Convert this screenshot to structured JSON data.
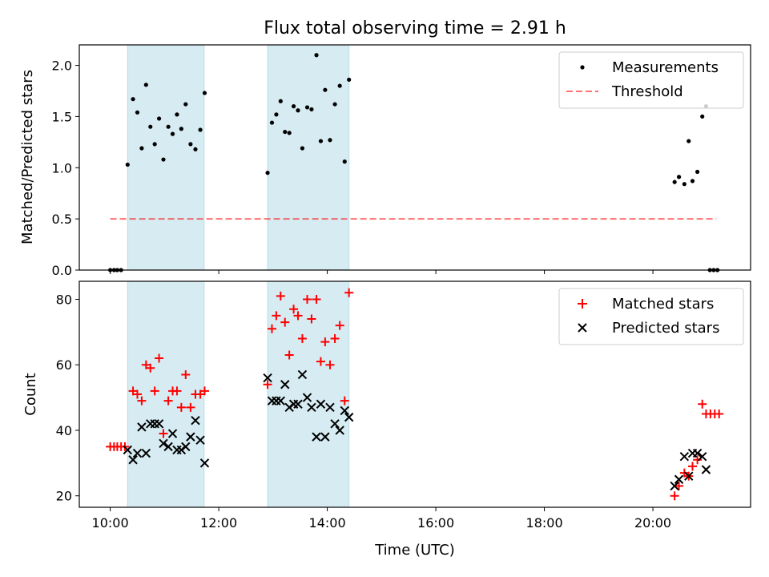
{
  "title": "Flux total observing time = 2.91 h",
  "colors": {
    "shade": "#add8e6",
    "threshold": "#ff0000",
    "matched": "#ff0000",
    "predicted": "#000000",
    "measurements": "#000000"
  },
  "chart_data": [
    {
      "type": "scatter",
      "ylabel": "Matched/Predicted stars",
      "xlim": [
        9.43,
        21.8
      ],
      "ylim": [
        0,
        2.2
      ],
      "xticks": [
        10,
        12,
        14,
        16,
        18,
        20
      ],
      "yticks": [
        0.0,
        0.5,
        1.0,
        1.5,
        2.0
      ],
      "ytick_labels": [
        "0.0",
        "0.5",
        "1.0",
        "1.5",
        "2.0"
      ],
      "shaded_intervals": [
        [
          10.32,
          11.73
        ],
        [
          12.9,
          14.4
        ]
      ],
      "legend": {
        "placement": "upper right",
        "entries": [
          "Measurements",
          "Threshold"
        ]
      },
      "threshold": {
        "name": "Threshold",
        "y": 0.5,
        "x_range": [
          10.0,
          21.17
        ],
        "style": "dashed"
      },
      "series": [
        {
          "name": "Measurements",
          "marker": "dot",
          "points": [
            [
              10.0,
              0.0
            ],
            [
              10.07,
              0.0
            ],
            [
              10.13,
              0.0
            ],
            [
              10.2,
              0.0
            ],
            [
              10.32,
              1.03
            ],
            [
              10.42,
              1.67
            ],
            [
              10.5,
              1.54
            ],
            [
              10.58,
              1.19
            ],
            [
              10.66,
              1.81
            ],
            [
              10.74,
              1.4
            ],
            [
              10.82,
              1.23
            ],
            [
              10.9,
              1.48
            ],
            [
              10.98,
              1.08
            ],
            [
              11.07,
              1.4
            ],
            [
              11.15,
              1.33
            ],
            [
              11.23,
              1.52
            ],
            [
              11.31,
              1.38
            ],
            [
              11.39,
              1.62
            ],
            [
              11.48,
              1.23
            ],
            [
              11.57,
              1.18
            ],
            [
              11.66,
              1.37
            ],
            [
              11.74,
              1.73
            ],
            [
              12.9,
              0.95
            ],
            [
              12.98,
              1.44
            ],
            [
              13.06,
              1.52
            ],
            [
              13.14,
              1.65
            ],
            [
              13.22,
              1.35
            ],
            [
              13.3,
              1.34
            ],
            [
              13.38,
              1.6
            ],
            [
              13.46,
              1.56
            ],
            [
              13.54,
              1.19
            ],
            [
              13.63,
              1.59
            ],
            [
              13.71,
              1.57
            ],
            [
              13.8,
              2.1
            ],
            [
              13.88,
              1.26
            ],
            [
              13.96,
              1.76
            ],
            [
              14.05,
              1.27
            ],
            [
              14.14,
              1.62
            ],
            [
              14.23,
              1.8
            ],
            [
              14.32,
              1.06
            ],
            [
              14.4,
              1.86
            ],
            [
              20.4,
              0.86
            ],
            [
              20.48,
              0.91
            ],
            [
              20.58,
              0.84
            ],
            [
              20.66,
              1.26
            ],
            [
              20.73,
              0.87
            ],
            [
              20.82,
              0.96
            ],
            [
              20.91,
              1.5
            ],
            [
              20.98,
              1.6
            ],
            [
              21.05,
              0.0
            ],
            [
              21.12,
              0.0
            ],
            [
              21.19,
              0.0
            ]
          ]
        }
      ]
    },
    {
      "type": "scatter",
      "xlabel": "Time (UTC)",
      "ylabel": "Count",
      "xlim": [
        9.43,
        21.8
      ],
      "ylim": [
        16.5,
        85.5
      ],
      "xticks": [
        10,
        12,
        14,
        16,
        18,
        20
      ],
      "xtick_labels": [
        "10:00",
        "12:00",
        "14:00",
        "16:00",
        "18:00",
        "20:00"
      ],
      "yticks": [
        20,
        40,
        60,
        80
      ],
      "ytick_labels": [
        "20",
        "40",
        "60",
        "80"
      ],
      "shaded_intervals": [
        [
          10.32,
          11.73
        ],
        [
          12.9,
          14.4
        ]
      ],
      "legend": {
        "placement": "upper right",
        "entries": [
          "Matched stars",
          "Predicted stars"
        ]
      },
      "series": [
        {
          "name": "Matched stars",
          "marker": "plus",
          "points": [
            [
              10.0,
              35
            ],
            [
              10.07,
              35
            ],
            [
              10.13,
              35
            ],
            [
              10.2,
              35
            ],
            [
              10.27,
              35
            ],
            [
              10.42,
              52
            ],
            [
              10.5,
              51
            ],
            [
              10.58,
              49
            ],
            [
              10.66,
              60
            ],
            [
              10.74,
              59
            ],
            [
              10.82,
              52
            ],
            [
              10.9,
              62
            ],
            [
              10.98,
              39
            ],
            [
              11.07,
              49
            ],
            [
              11.15,
              52
            ],
            [
              11.23,
              52
            ],
            [
              11.31,
              47
            ],
            [
              11.39,
              57
            ],
            [
              11.48,
              47
            ],
            [
              11.57,
              51
            ],
            [
              11.66,
              51
            ],
            [
              11.74,
              52
            ],
            [
              12.9,
              54
            ],
            [
              12.98,
              71
            ],
            [
              13.06,
              75
            ],
            [
              13.14,
              81
            ],
            [
              13.22,
              73
            ],
            [
              13.3,
              63
            ],
            [
              13.38,
              77
            ],
            [
              13.46,
              75
            ],
            [
              13.54,
              68
            ],
            [
              13.63,
              80
            ],
            [
              13.71,
              74
            ],
            [
              13.8,
              80
            ],
            [
              13.88,
              61
            ],
            [
              13.96,
              67
            ],
            [
              14.05,
              60
            ],
            [
              14.14,
              68
            ],
            [
              14.23,
              72
            ],
            [
              14.32,
              49
            ],
            [
              14.4,
              82
            ],
            [
              20.4,
              20
            ],
            [
              20.48,
              23
            ],
            [
              20.58,
              27
            ],
            [
              20.66,
              26
            ],
            [
              20.73,
              29
            ],
            [
              20.82,
              31
            ],
            [
              20.91,
              48
            ],
            [
              20.98,
              45
            ],
            [
              21.06,
              45
            ],
            [
              21.14,
              45
            ],
            [
              21.22,
              45
            ]
          ]
        },
        {
          "name": "Predicted stars",
          "marker": "x",
          "points": [
            [
              10.32,
              34
            ],
            [
              10.42,
              31
            ],
            [
              10.5,
              33
            ],
            [
              10.58,
              41
            ],
            [
              10.66,
              33
            ],
            [
              10.74,
              42
            ],
            [
              10.82,
              42
            ],
            [
              10.9,
              42
            ],
            [
              10.98,
              36
            ],
            [
              11.07,
              35
            ],
            [
              11.15,
              39
            ],
            [
              11.23,
              34
            ],
            [
              11.31,
              34
            ],
            [
              11.39,
              35
            ],
            [
              11.48,
              38
            ],
            [
              11.57,
              43
            ],
            [
              11.66,
              37
            ],
            [
              11.74,
              30
            ],
            [
              12.9,
              56
            ],
            [
              12.98,
              49
            ],
            [
              13.06,
              49
            ],
            [
              13.14,
              49
            ],
            [
              13.22,
              54
            ],
            [
              13.3,
              47
            ],
            [
              13.38,
              48
            ],
            [
              13.46,
              48
            ],
            [
              13.54,
              57
            ],
            [
              13.63,
              50
            ],
            [
              13.71,
              47
            ],
            [
              13.8,
              38
            ],
            [
              13.88,
              48
            ],
            [
              13.96,
              38
            ],
            [
              14.05,
              47
            ],
            [
              14.14,
              42
            ],
            [
              14.23,
              40
            ],
            [
              14.32,
              46
            ],
            [
              14.4,
              44
            ],
            [
              20.4,
              23
            ],
            [
              20.48,
              25
            ],
            [
              20.58,
              32
            ],
            [
              20.66,
              26
            ],
            [
              20.73,
              33
            ],
            [
              20.82,
              33
            ],
            [
              20.91,
              32
            ],
            [
              20.98,
              28
            ]
          ]
        }
      ]
    }
  ]
}
